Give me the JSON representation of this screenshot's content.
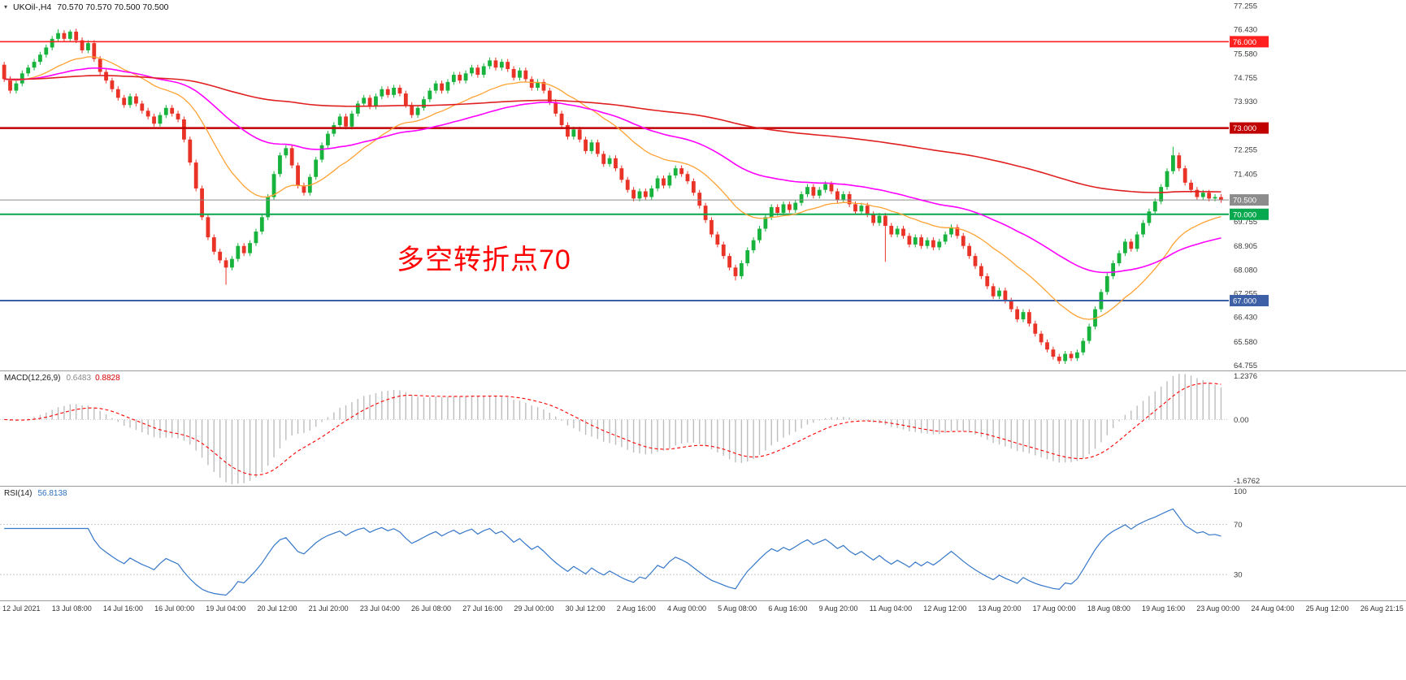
{
  "header": {
    "symbol_title": "UKOil-,H4",
    "ohlc_readout": "70.570 70.570 70.500 70.500"
  },
  "icons": {
    "dropdown": "▾"
  },
  "annotation": {
    "text": "多空转折点70",
    "color": "#ff0000"
  },
  "macd_label": {
    "name": "MACD(12,26,9)",
    "main_value": "0.6483",
    "signal_value": "0.8828"
  },
  "rsi_label": {
    "name": "RSI(14)",
    "value": "56.8138"
  },
  "chart_data": {
    "type": "candlestick",
    "title": "UKOil- H4",
    "price_axis": {
      "ylim": [
        64.6,
        77.45
      ],
      "ticks": [
        77.255,
        76.43,
        75.58,
        74.755,
        73.93,
        72.255,
        71.405,
        69.755,
        68.905,
        68.08,
        67.255,
        66.43,
        65.58,
        64.755
      ]
    },
    "hlines": [
      {
        "value": 76.0,
        "label": "76.000",
        "color": "#ff2020",
        "width": 1.6
      },
      {
        "value": 73.0,
        "label": "73.000",
        "color": "#c00000",
        "width": 2.5
      },
      {
        "value": 70.5,
        "label": "70.500",
        "color": "#8c8c8c",
        "width": 1
      },
      {
        "value": 70.0,
        "label": "70.000",
        "color": "#08a84e",
        "width": 2
      },
      {
        "value": 67.0,
        "label": "67.000",
        "color": "#3c5fa5",
        "width": 2
      }
    ],
    "candles": {
      "first_open": 75.2,
      "default_wick": 0.1,
      "up_color": "#18b33c",
      "down_color": "#ea3327",
      "closes": [
        74.7,
        74.3,
        74.55,
        74.9,
        75.1,
        75.3,
        75.55,
        75.8,
        76.1,
        76.3,
        76.1,
        76.35,
        76.05,
        75.7,
        75.95,
        75.4,
        74.95,
        74.65,
        74.35,
        74.05,
        73.8,
        74.1,
        73.85,
        73.6,
        73.4,
        73.15,
        73.45,
        73.7,
        73.5,
        73.3,
        72.6,
        71.8,
        70.9,
        69.9,
        69.2,
        68.7,
        68.4,
        68.15,
        68.45,
        68.9,
        68.65,
        69.0,
        69.4,
        69.9,
        70.6,
        71.4,
        72.05,
        72.3,
        71.7,
        71.0,
        70.75,
        71.3,
        71.9,
        72.4,
        72.8,
        73.1,
        73.4,
        73.05,
        73.5,
        73.85,
        74.05,
        73.75,
        74.1,
        74.35,
        74.15,
        74.4,
        74.2,
        73.8,
        73.45,
        73.7,
        74.0,
        74.3,
        74.55,
        74.3,
        74.6,
        74.85,
        74.65,
        74.9,
        75.1,
        74.85,
        75.15,
        75.35,
        75.1,
        75.3,
        75.05,
        74.75,
        75.0,
        74.7,
        74.4,
        74.6,
        74.3,
        73.9,
        73.5,
        73.1,
        72.7,
        72.95,
        72.6,
        72.2,
        72.5,
        72.1,
        71.75,
        71.95,
        71.6,
        71.2,
        70.85,
        70.55,
        70.8,
        70.6,
        70.9,
        71.25,
        71.0,
        71.35,
        71.6,
        71.4,
        71.15,
        70.75,
        70.3,
        69.8,
        69.3,
        68.95,
        68.55,
        68.15,
        67.85,
        68.3,
        68.75,
        69.1,
        69.5,
        69.9,
        70.25,
        70.05,
        70.35,
        70.15,
        70.4,
        70.7,
        70.95,
        70.65,
        70.85,
        71.05,
        70.8,
        70.5,
        70.7,
        70.35,
        70.1,
        70.3,
        70.0,
        69.7,
        69.95,
        69.6,
        69.3,
        69.5,
        69.25,
        68.95,
        69.2,
        68.9,
        69.1,
        68.85,
        69.05,
        69.3,
        69.55,
        69.25,
        68.9,
        68.55,
        68.2,
        67.85,
        67.5,
        67.15,
        67.35,
        67.0,
        66.7,
        66.35,
        66.6,
        66.2,
        65.85,
        65.55,
        65.3,
        65.05,
        64.9,
        65.15,
        65.0,
        65.2,
        65.6,
        66.1,
        66.7,
        67.3,
        67.85,
        68.3,
        68.65,
        69.05,
        68.8,
        69.3,
        69.7,
        70.1,
        70.45,
        70.95,
        71.5,
        72.05,
        71.6,
        71.1,
        70.85,
        70.6,
        70.75,
        70.55,
        70.6,
        70.5
      ],
      "wick_high_overrides": {
        "9": 76.43,
        "11": 76.42,
        "195": 72.35
      },
      "wick_low_overrides": {
        "37": 67.55,
        "122": 67.7,
        "147": 68.35,
        "176": 64.8
      }
    },
    "overlays": [
      {
        "name": "ma-fast",
        "period": 21,
        "color": "#ffa233",
        "width": 1.3
      },
      {
        "name": "ma-mid",
        "period": 56,
        "color": "#ff00ff",
        "width": 1.6
      },
      {
        "name": "ma-slow",
        "period": 200,
        "color": "#e02020",
        "width": 1.6
      }
    ],
    "macd": {
      "fast": 12,
      "slow": 26,
      "signal": 9,
      "ylim": [
        -1.6762,
        1.2376
      ],
      "axis_ticks": [
        "1.2376",
        "0.00",
        "-1.6762"
      ],
      "hist_color": "#bdbdbd",
      "signal_color": "#ff0000",
      "main_value": "0.6483",
      "signal_value": "0.8828"
    },
    "rsi": {
      "period": 14,
      "ylim": [
        10,
        100
      ],
      "axis_ticks": [
        100,
        70,
        30
      ],
      "levels": [
        70,
        30
      ],
      "color": "#3577c9",
      "value": "56.8138"
    },
    "time_labels": [
      "12 Jul 2021",
      "13 Jul 08:00",
      "14 Jul 16:00",
      "16 Jul 00:00",
      "19 Jul 04:00",
      "20 Jul 12:00",
      "21 Jul 20:00",
      "23 Jul 04:00",
      "26 Jul 08:00",
      "27 Jul 16:00",
      "29 Jul 00:00",
      "30 Jul 12:00",
      "2 Aug 16:00",
      "4 Aug 00:00",
      "5 Aug 08:00",
      "6 Aug 16:00",
      "9 Aug 20:00",
      "11 Aug 04:00",
      "12 Aug 12:00",
      "13 Aug 20:00",
      "17 Aug 00:00",
      "18 Aug 08:00",
      "19 Aug 16:00",
      "23 Aug 00:00",
      "24 Aug 04:00",
      "25 Aug 12:00",
      "26 Aug 21:15"
    ]
  }
}
